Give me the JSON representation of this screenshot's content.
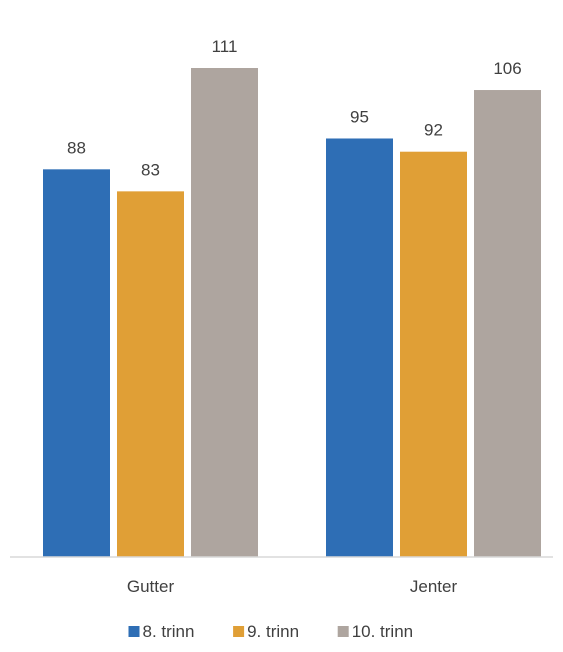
{
  "chart_data": {
    "type": "bar",
    "categories": [
      "Gutter",
      "Jenter"
    ],
    "series": [
      {
        "name": "8. trinn",
        "values": [
          88,
          95
        ],
        "color": "#2e6eb5"
      },
      {
        "name": "9. trinn",
        "values": [
          83,
          92
        ],
        "color": "#e09f36"
      },
      {
        "name": "10. trinn",
        "values": [
          111,
          106
        ],
        "color": "#aea59f"
      }
    ],
    "title": "",
    "xlabel": "",
    "ylabel": "",
    "ylim": [
      0,
      111
    ],
    "grid": false,
    "legend_position": "bottom",
    "data_labels": true
  }
}
